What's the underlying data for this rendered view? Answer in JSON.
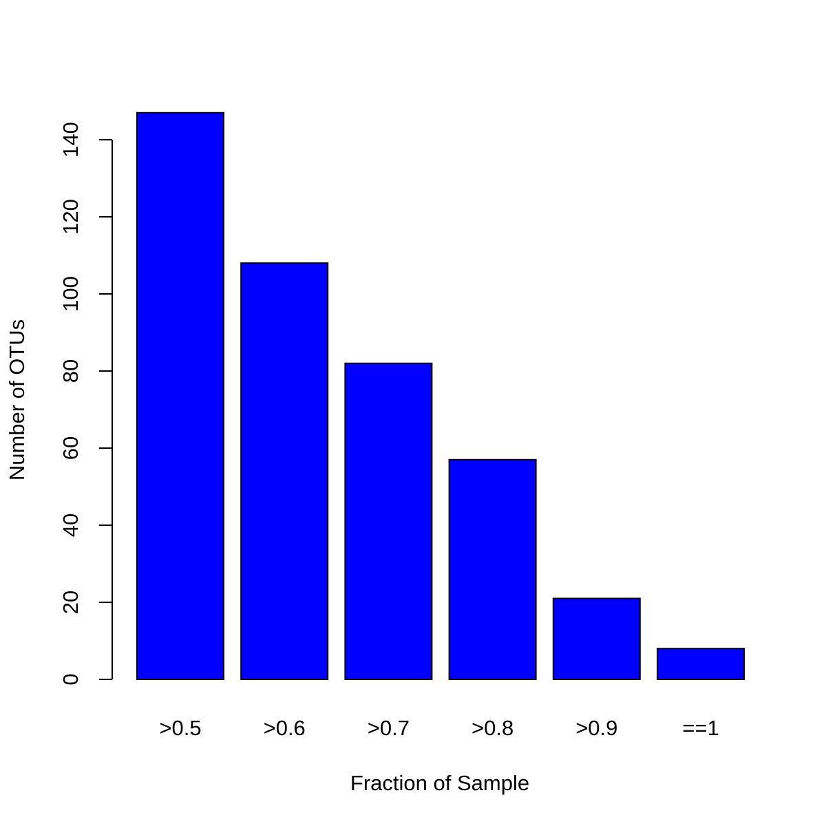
{
  "chart_data": {
    "type": "bar",
    "categories": [
      ">0.5",
      ">0.6",
      ">0.7",
      ">0.8",
      ">0.9",
      "==1"
    ],
    "values": [
      147,
      108,
      82,
      57,
      21,
      8
    ],
    "xlabel": "Fraction of Sample",
    "ylabel": "Number of OTUs",
    "ylim": [
      0,
      140
    ],
    "yticks": [
      0,
      20,
      40,
      60,
      80,
      100,
      120,
      140
    ],
    "grid": false,
    "legend": "none",
    "bar_color": "#0000ff",
    "bar_border_color": "#000000"
  }
}
